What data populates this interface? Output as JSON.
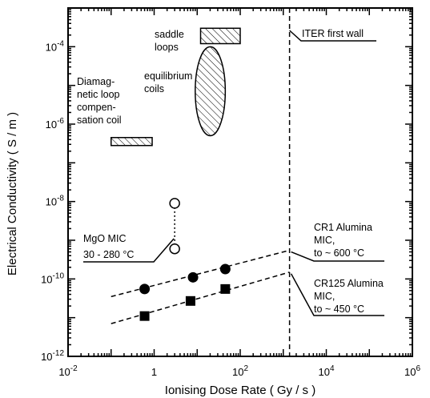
{
  "chart_data": {
    "type": "scatter",
    "xscale": "log",
    "yscale": "log",
    "xlim": [
      0.01,
      1000000
    ],
    "ylim": [
      1e-12,
      0.001
    ],
    "xlabel": "Ionising Dose Rate ( Gy / s )",
    "ylabel": "Electrical Conductivity ( S / m )",
    "xticks": [
      {
        "value": 0.01,
        "base": "10",
        "exp": "-2"
      },
      {
        "value": 1,
        "base": "1",
        "exp": ""
      },
      {
        "value": 100,
        "base": "10",
        "exp": "2"
      },
      {
        "value": 10000,
        "base": "10",
        "exp": "4"
      },
      {
        "value": 1000000,
        "base": "10",
        "exp": "6"
      }
    ],
    "yticks": [
      {
        "value": 1e-12,
        "base": "10",
        "exp": "-12"
      },
      {
        "value": 1e-10,
        "base": "10",
        "exp": "-10"
      },
      {
        "value": 1e-08,
        "base": "10",
        "exp": "-8"
      },
      {
        "value": 1e-06,
        "base": "10",
        "exp": "-6"
      },
      {
        "value": 0.0001,
        "base": "10",
        "exp": "-4"
      }
    ],
    "series": [
      {
        "name": "CR1 Alumina MIC, to ~ 600 °C",
        "marker": "filled-circle",
        "x": [
          0.6,
          8,
          45
        ],
        "y": [
          5.5e-11,
          1.1e-10,
          1.8e-10
        ],
        "trend": {
          "x": [
            0.1,
            1400
          ],
          "y": [
            3.5e-11,
            5.5e-10
          ]
        }
      },
      {
        "name": "CR125 Alumina MIC, to ~ 450 °C",
        "marker": "filled-square",
        "x": [
          0.6,
          7,
          45
        ],
        "y": [
          1.1e-11,
          2.7e-11,
          5.5e-11
        ],
        "trend": {
          "x": [
            0.1,
            1400
          ],
          "y": [
            7e-12,
            1.5e-10
          ]
        }
      },
      {
        "name": "MgO MIC 30 - 280 °C",
        "marker": "open-circle",
        "x": [
          3,
          3
        ],
        "y": [
          9e-09,
          6e-10
        ]
      }
    ],
    "regions": [
      {
        "label_lines": [
          "saddle",
          "loops"
        ],
        "shape": "rect",
        "x": [
          12,
          100
        ],
        "y": [
          0.00012,
          0.0003
        ]
      },
      {
        "label_lines": [
          "equilibrium",
          "coils"
        ],
        "shape": "ellipse",
        "x": [
          9,
          45
        ],
        "y": [
          5e-07,
          0.0001
        ]
      },
      {
        "label_lines": [
          "Diamag-",
          "netic loop",
          "compen-",
          "sation coil"
        ],
        "shape": "rect",
        "x": [
          0.1,
          0.9
        ],
        "y": [
          2.8e-07,
          4.5e-07
        ]
      }
    ],
    "reference_lines": [
      {
        "label": "ITER first wall",
        "x": 1400
      }
    ],
    "annotations": [
      {
        "lines": [
          "MgO MIC",
          "30 - 280 °C"
        ]
      },
      {
        "lines": [
          "CR1 Alumina",
          "MIC,",
          "to ~ 600 °C"
        ]
      },
      {
        "lines": [
          "CR125 Alumina",
          "MIC,",
          "to ~ 450 °C"
        ]
      }
    ],
    "legend": "none",
    "grid": false
  }
}
